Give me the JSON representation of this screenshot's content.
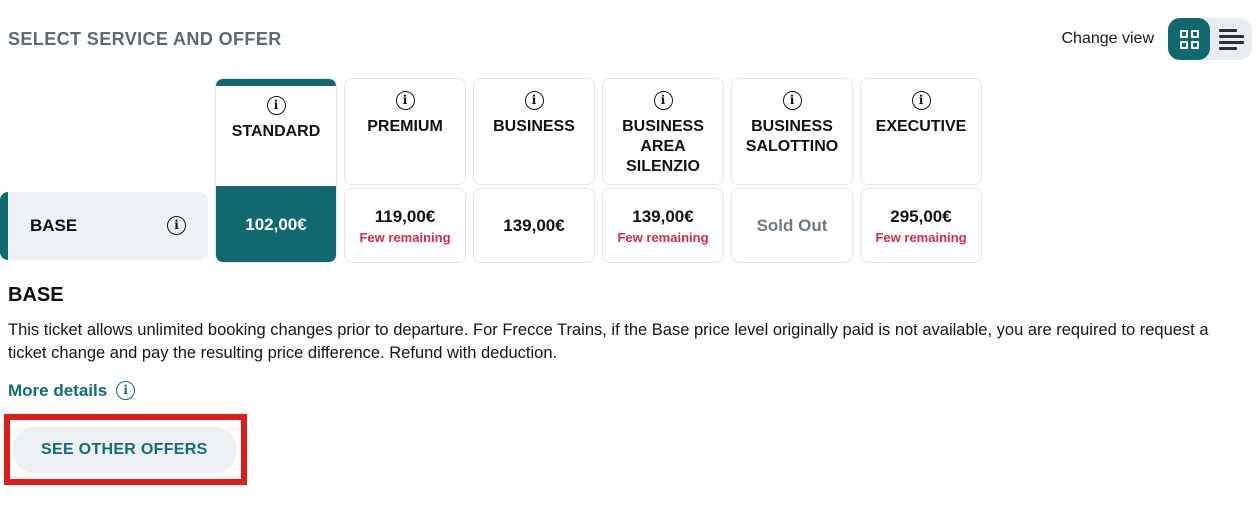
{
  "header": {
    "title": "SELECT SERVICE AND OFFER",
    "change_view_label": "Change view",
    "view_modes": [
      {
        "name": "grid",
        "icon": "grid-view-icon",
        "active": true
      },
      {
        "name": "list",
        "icon": "list-view-icon",
        "active": false
      }
    ]
  },
  "services": [
    {
      "name": "STANDARD",
      "price": "102,00€",
      "note": "",
      "selected": true,
      "sold_out": false
    },
    {
      "name": "PREMIUM",
      "price": "119,00€",
      "note": "Few remaining",
      "selected": false,
      "sold_out": false
    },
    {
      "name": "BUSINESS",
      "price": "139,00€",
      "note": "",
      "selected": false,
      "sold_out": false
    },
    {
      "name": "BUSINESS AREA SILENZIO",
      "price": "139,00€",
      "note": "Few remaining",
      "selected": false,
      "sold_out": false
    },
    {
      "name": "BUSINESS SALOTTINO",
      "price": "Sold Out",
      "note": "",
      "selected": false,
      "sold_out": true
    },
    {
      "name": "EXECUTIVE",
      "price": "295,00€",
      "note": "Few remaining",
      "selected": false,
      "sold_out": false
    }
  ],
  "offer_row": {
    "label": "BASE"
  },
  "offer_details": {
    "title": "BASE",
    "description": "This ticket allows unlimited booking changes prior to departure. For Frecce Trains, if the Base price level originally paid is not available, you are required to request a ticket change and pay the resulting price difference. Refund with deduction.",
    "more_details_label": "More details"
  },
  "actions": {
    "see_other_offers_label": "SEE OTHER OFFERS"
  },
  "colors": {
    "teal": "#10696e",
    "alert_red": "#d9274e",
    "annotation_red": "#e01d1d",
    "sold_out_gray": "#6e7a84",
    "title_gray": "#5d6a75",
    "row_bg": "#eef1f4"
  }
}
